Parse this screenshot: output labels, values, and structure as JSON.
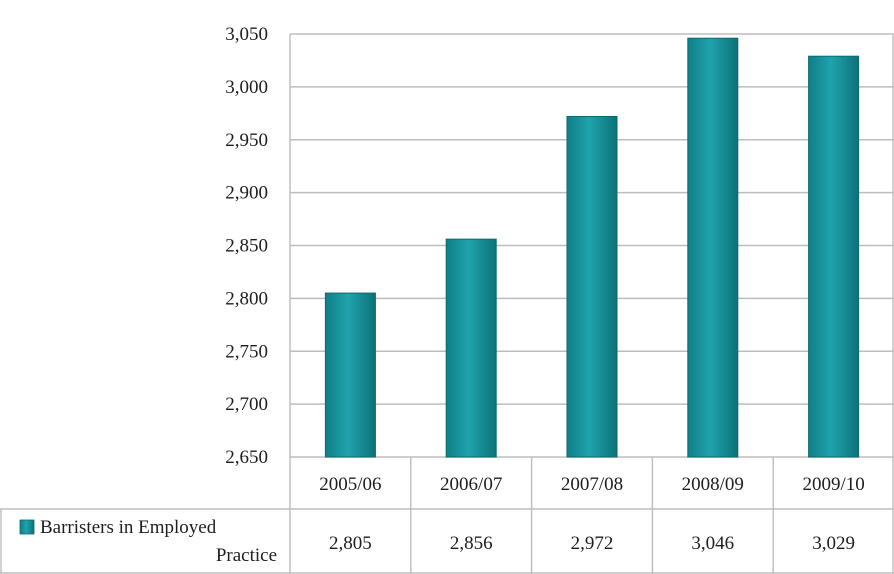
{
  "chart_data": {
    "type": "bar",
    "title": "",
    "xlabel": "",
    "ylabel": "",
    "categories": [
      "2005/06",
      "2006/07",
      "2007/08",
      "2008/09",
      "2009/10"
    ],
    "series": [
      {
        "name": "Barristers in Employed Practice",
        "values": [
          2805,
          2856,
          2972,
          3046,
          3029
        ],
        "value_labels": [
          "2,805",
          "2,856",
          "2,972",
          "3,046",
          "3,029"
        ],
        "color": "#18929c"
      }
    ],
    "ylim": [
      2650,
      3050
    ],
    "yticks": [
      2650,
      2700,
      2750,
      2800,
      2850,
      2900,
      2950,
      3000,
      3050
    ],
    "ytick_labels": [
      "2,650",
      "2,700",
      "2,750",
      "2,800",
      "2,850",
      "2,900",
      "2,950",
      "3,000",
      "3,050"
    ],
    "grid": true,
    "legend": "data-table",
    "data_table": true
  }
}
